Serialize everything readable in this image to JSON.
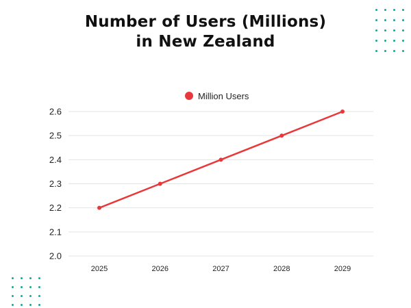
{
  "title": {
    "line1": "Number of Users (Millions)",
    "line2": "in New Zealand"
  },
  "colors": {
    "line": "#e8383b",
    "grid": "#e3e3e3",
    "decor_dots": "#16a59a"
  },
  "chart_data": {
    "type": "line",
    "title": "Number of Users (Millions) in New Zealand",
    "x": [
      "2025",
      "2026",
      "2027",
      "2028",
      "2029"
    ],
    "series": [
      {
        "name": "Million Users",
        "values": [
          2.2,
          2.3,
          2.4,
          2.5,
          2.6
        ]
      }
    ],
    "ylim": [
      2.0,
      2.6
    ],
    "yticks": [
      "2.0",
      "2.1",
      "2.2",
      "2.3",
      "2.4",
      "2.5",
      "2.6"
    ],
    "xlabel": "",
    "ylabel": "",
    "grid": true,
    "legend_position": "top-center"
  }
}
